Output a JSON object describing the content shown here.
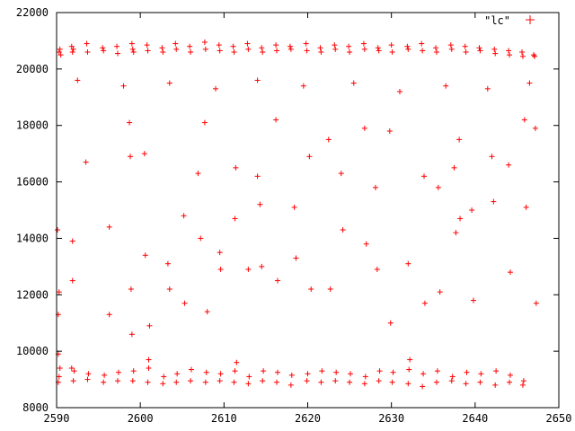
{
  "chart_data": {
    "type": "scatter",
    "title": "",
    "xlabel": "",
    "ylabel": "",
    "xlim": [
      2590,
      2650
    ],
    "ylim": [
      8000,
      22000
    ],
    "x_ticks": [
      2590,
      2600,
      2610,
      2620,
      2630,
      2640,
      2650
    ],
    "y_ticks": [
      8000,
      10000,
      12000,
      14000,
      16000,
      18000,
      20000,
      22000
    ],
    "x_tick_labels": [
      "2590",
      "2600",
      "2610",
      "2620",
      "2630",
      "2640",
      "2650"
    ],
    "y_tick_labels": [
      "8000",
      "10000",
      "12000",
      "14000",
      "16000",
      "18000",
      "20000",
      "22000"
    ],
    "grid": false,
    "legend_position": "top-right",
    "marker": "+",
    "series_color": "#ff0000",
    "series": [
      {
        "name": "\"lc\"",
        "x": [
          2590.3,
          2590.4,
          2590.5,
          2591.8,
          2591.9,
          2592.0,
          2593.6,
          2593.7,
          2595.5,
          2595.6,
          2597.2,
          2597.3,
          2599.0,
          2599.1,
          2599.2,
          2600.8,
          2600.9,
          2602.6,
          2602.7,
          2604.2,
          2604.3,
          2605.9,
          2606.0,
          2607.7,
          2607.8,
          2609.4,
          2609.5,
          2611.1,
          2611.2,
          2612.8,
          2612.9,
          2614.5,
          2614.6,
          2616.2,
          2616.3,
          2617.9,
          2618.0,
          2619.8,
          2619.9,
          2621.5,
          2621.6,
          2623.2,
          2623.3,
          2624.9,
          2625.0,
          2626.7,
          2626.8,
          2628.4,
          2628.5,
          2630.0,
          2630.1,
          2631.9,
          2632.0,
          2633.6,
          2633.7,
          2635.3,
          2635.4,
          2637.1,
          2637.2,
          2638.8,
          2638.9,
          2640.5,
          2640.6,
          2642.3,
          2642.4,
          2644.0,
          2644.1,
          2645.6,
          2645.7,
          2647.0,
          2647.1,
          2592.5,
          2598.0,
          2603.5,
          2609.0,
          2614.0,
          2619.5,
          2625.5,
          2631.0,
          2636.5,
          2641.5,
          2646.5,
          2590.1,
          2590.2,
          2590.3,
          2590.2,
          2591.8,
          2591.9,
          2591.9,
          2593.5,
          2596.3,
          2596.3,
          2598.7,
          2598.8,
          2598.9,
          2599.0,
          2600.5,
          2600.6,
          2601.0,
          2601.1,
          2603.3,
          2603.5,
          2605.2,
          2605.3,
          2606.9,
          2607.2,
          2607.7,
          2608.0,
          2609.5,
          2609.6,
          2611.3,
          2611.4,
          2611.5,
          2612.9,
          2614.0,
          2614.3,
          2614.5,
          2616.2,
          2616.4,
          2618.4,
          2618.6,
          2620.2,
          2620.4,
          2622.5,
          2622.7,
          2624.0,
          2624.2,
          2626.8,
          2627.0,
          2628.1,
          2628.3,
          2629.8,
          2629.9,
          2632.0,
          2632.2,
          2633.9,
          2634.0,
          2635.6,
          2635.8,
          2637.5,
          2637.7,
          2638.1,
          2638.2,
          2639.6,
          2639.8,
          2642.0,
          2642.2,
          2644.0,
          2644.2,
          2645.9,
          2646.1,
          2647.2,
          2647.3,
          2590.2,
          2590.3,
          2590.4,
          2592.0,
          2592.1,
          2593.7,
          2593.8,
          2595.6,
          2595.7,
          2597.3,
          2597.4,
          2599.1,
          2599.2,
          2600.9,
          2601.0,
          2602.7,
          2602.8,
          2604.3,
          2604.4,
          2606.0,
          2606.1,
          2607.8,
          2607.9,
          2609.5,
          2609.6,
          2611.2,
          2611.3,
          2612.9,
          2613.0,
          2614.6,
          2614.7,
          2616.3,
          2616.4,
          2618.0,
          2618.1,
          2619.9,
          2620.0,
          2621.6,
          2621.7,
          2623.3,
          2623.4,
          2625.0,
          2625.1,
          2626.8,
          2626.9,
          2628.5,
          2628.6,
          2630.1,
          2630.2,
          2632.0,
          2632.1,
          2633.7,
          2633.8,
          2635.4,
          2635.5,
          2637.2,
          2637.3,
          2638.9,
          2639.0,
          2640.6,
          2640.7,
          2642.4,
          2642.5,
          2644.1,
          2644.2,
          2645.7,
          2645.8
        ],
        "y": [
          20600,
          20700,
          20500,
          20800,
          20600,
          20700,
          20900,
          20600,
          20750,
          20650,
          20800,
          20550,
          20900,
          20700,
          20600,
          20850,
          20650,
          20750,
          20600,
          20900,
          20700,
          20800,
          20600,
          20950,
          20700,
          20850,
          20650,
          20800,
          20600,
          20900,
          20700,
          20750,
          20600,
          20850,
          20650,
          20800,
          20700,
          20900,
          20650,
          20750,
          20600,
          20850,
          20700,
          20800,
          20600,
          20900,
          20700,
          20750,
          20650,
          20850,
          20600,
          20800,
          20700,
          20900,
          20650,
          20750,
          20600,
          20850,
          20700,
          20800,
          20600,
          20750,
          20650,
          20700,
          20550,
          20650,
          20500,
          20600,
          20450,
          20500,
          20450,
          19600,
          19400,
          19500,
          19300,
          19600,
          19400,
          19500,
          19200,
          19400,
          19300,
          19500,
          14300,
          11300,
          12100,
          9900,
          9400,
          13900,
          12500,
          16700,
          11300,
          14400,
          18100,
          16900,
          12200,
          10600,
          17000,
          13400,
          9700,
          10900,
          13100,
          12200,
          14800,
          11700,
          16300,
          14000,
          18100,
          11400,
          13500,
          12900,
          14700,
          16500,
          9600,
          12900,
          16200,
          15200,
          13000,
          18200,
          12500,
          15100,
          13300,
          16900,
          12200,
          17500,
          12200,
          16300,
          14300,
          17900,
          13800,
          15800,
          12900,
          17800,
          11000,
          13100,
          9700,
          16200,
          11700,
          15800,
          12100,
          16500,
          14200,
          17500,
          14700,
          15000,
          11800,
          16900,
          15300,
          16600,
          12800,
          18200,
          15100,
          17900,
          11700,
          8900,
          9100,
          9400,
          8950,
          9300,
          9000,
          9200,
          8900,
          9150,
          8950,
          9250,
          8950,
          9300,
          8900,
          9400,
          8850,
          9100,
          8900,
          9200,
          8950,
          9350,
          8900,
          9250,
          8950,
          9200,
          8900,
          9300,
          8850,
          9100,
          8950,
          9300,
          8900,
          9250,
          8800,
          9150,
          8950,
          9200,
          8900,
          9300,
          8950,
          9250,
          8900,
          9200,
          8850,
          9100,
          8950,
          9300,
          8900,
          9250,
          8850,
          9350,
          8750,
          9200,
          8900,
          9300,
          8950,
          9100,
          8850,
          9250,
          8900,
          9200,
          8800,
          9300,
          8900,
          9150,
          8800,
          8950
        ]
      }
    ]
  }
}
